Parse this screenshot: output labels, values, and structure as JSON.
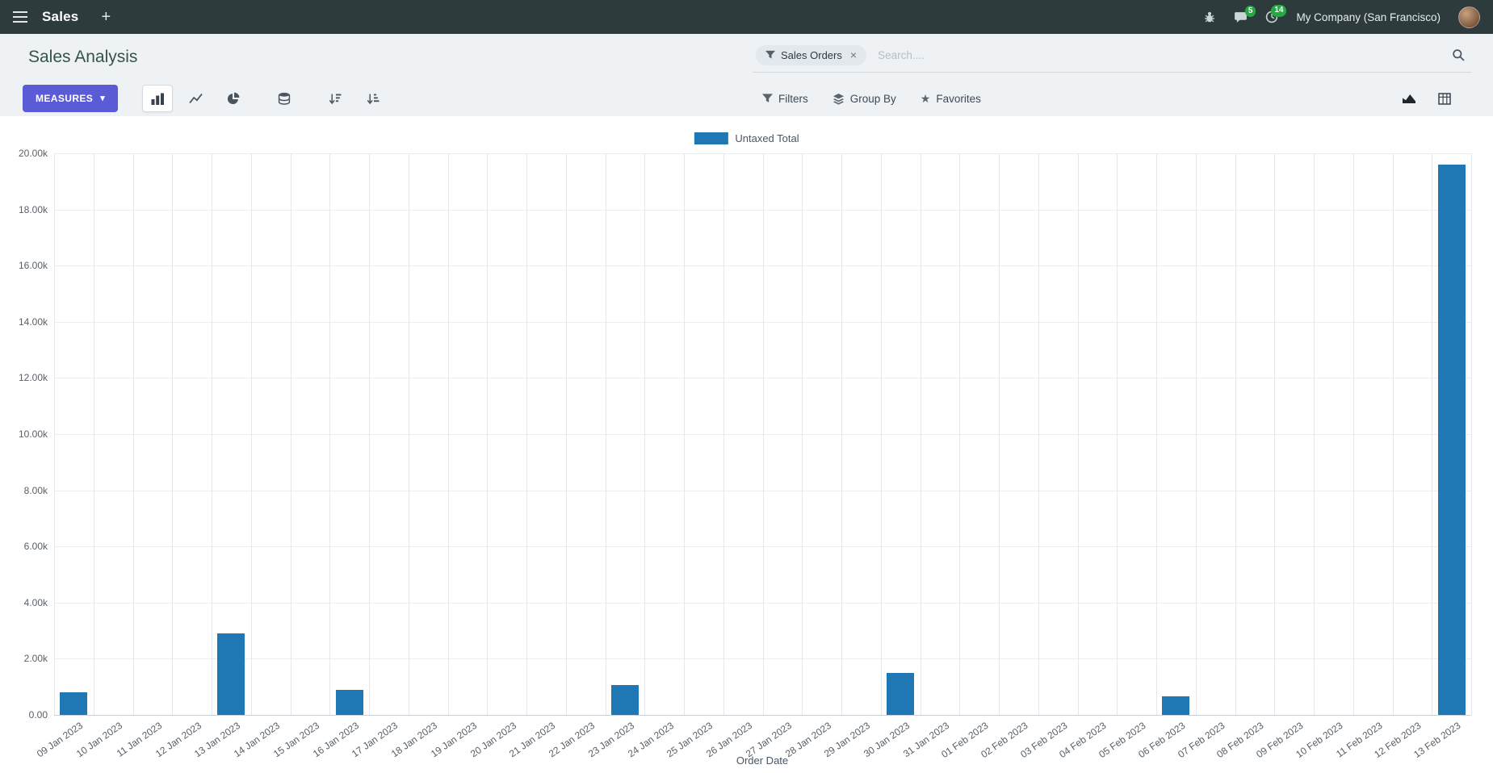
{
  "colors": {
    "navbar_bg": "#2d3b3d",
    "primary_button": "#5c5bd6",
    "badge_green": "#28a745",
    "bar": "#1f77b4"
  },
  "icons": {
    "plus": "+",
    "caret_down": "▾",
    "close": "×",
    "star": "★"
  },
  "navbar": {
    "app_name": "Sales",
    "messages_badge": "5",
    "activities_badge": "14",
    "company": "My Company (San Francisco)"
  },
  "control_panel": {
    "title": "Sales Analysis",
    "search": {
      "facet_label": "Sales Orders",
      "placeholder": "Search...."
    },
    "measures_label": "MEASURES",
    "filters_label": "Filters",
    "group_by_label": "Group By",
    "favorites_label": "Favorites"
  },
  "chart_data": {
    "type": "bar",
    "title": "",
    "xlabel": "Order Date",
    "ylabel": "",
    "legend_position": "top",
    "grid": true,
    "ylim": [
      0,
      20000
    ],
    "yticks": [
      0,
      2000,
      4000,
      6000,
      8000,
      10000,
      12000,
      14000,
      16000,
      18000,
      20000
    ],
    "ytick_labels": [
      "0.00",
      "2.00k",
      "4.00k",
      "6.00k",
      "8.00k",
      "10.00k",
      "12.00k",
      "14.00k",
      "16.00k",
      "18.00k",
      "20.00k"
    ],
    "categories": [
      "09 Jan 2023",
      "10 Jan 2023",
      "11 Jan 2023",
      "12 Jan 2023",
      "13 Jan 2023",
      "14 Jan 2023",
      "15 Jan 2023",
      "16 Jan 2023",
      "17 Jan 2023",
      "18 Jan 2023",
      "19 Jan 2023",
      "20 Jan 2023",
      "21 Jan 2023",
      "22 Jan 2023",
      "23 Jan 2023",
      "24 Jan 2023",
      "25 Jan 2023",
      "26 Jan 2023",
      "27 Jan 2023",
      "28 Jan 2023",
      "29 Jan 2023",
      "30 Jan 2023",
      "31 Jan 2023",
      "01 Feb 2023",
      "02 Feb 2023",
      "03 Feb 2023",
      "04 Feb 2023",
      "05 Feb 2023",
      "06 Feb 2023",
      "07 Feb 2023",
      "08 Feb 2023",
      "09 Feb 2023",
      "10 Feb 2023",
      "11 Feb 2023",
      "12 Feb 2023",
      "13 Feb 2023"
    ],
    "series": [
      {
        "name": "Untaxed Total",
        "color": "#1f77b4",
        "values": [
          800,
          0,
          0,
          0,
          2900,
          0,
          0,
          900,
          0,
          0,
          0,
          0,
          0,
          0,
          1050,
          0,
          0,
          0,
          0,
          0,
          0,
          1500,
          0,
          0,
          0,
          0,
          0,
          0,
          650,
          0,
          0,
          0,
          0,
          0,
          0,
          19600
        ]
      }
    ]
  }
}
